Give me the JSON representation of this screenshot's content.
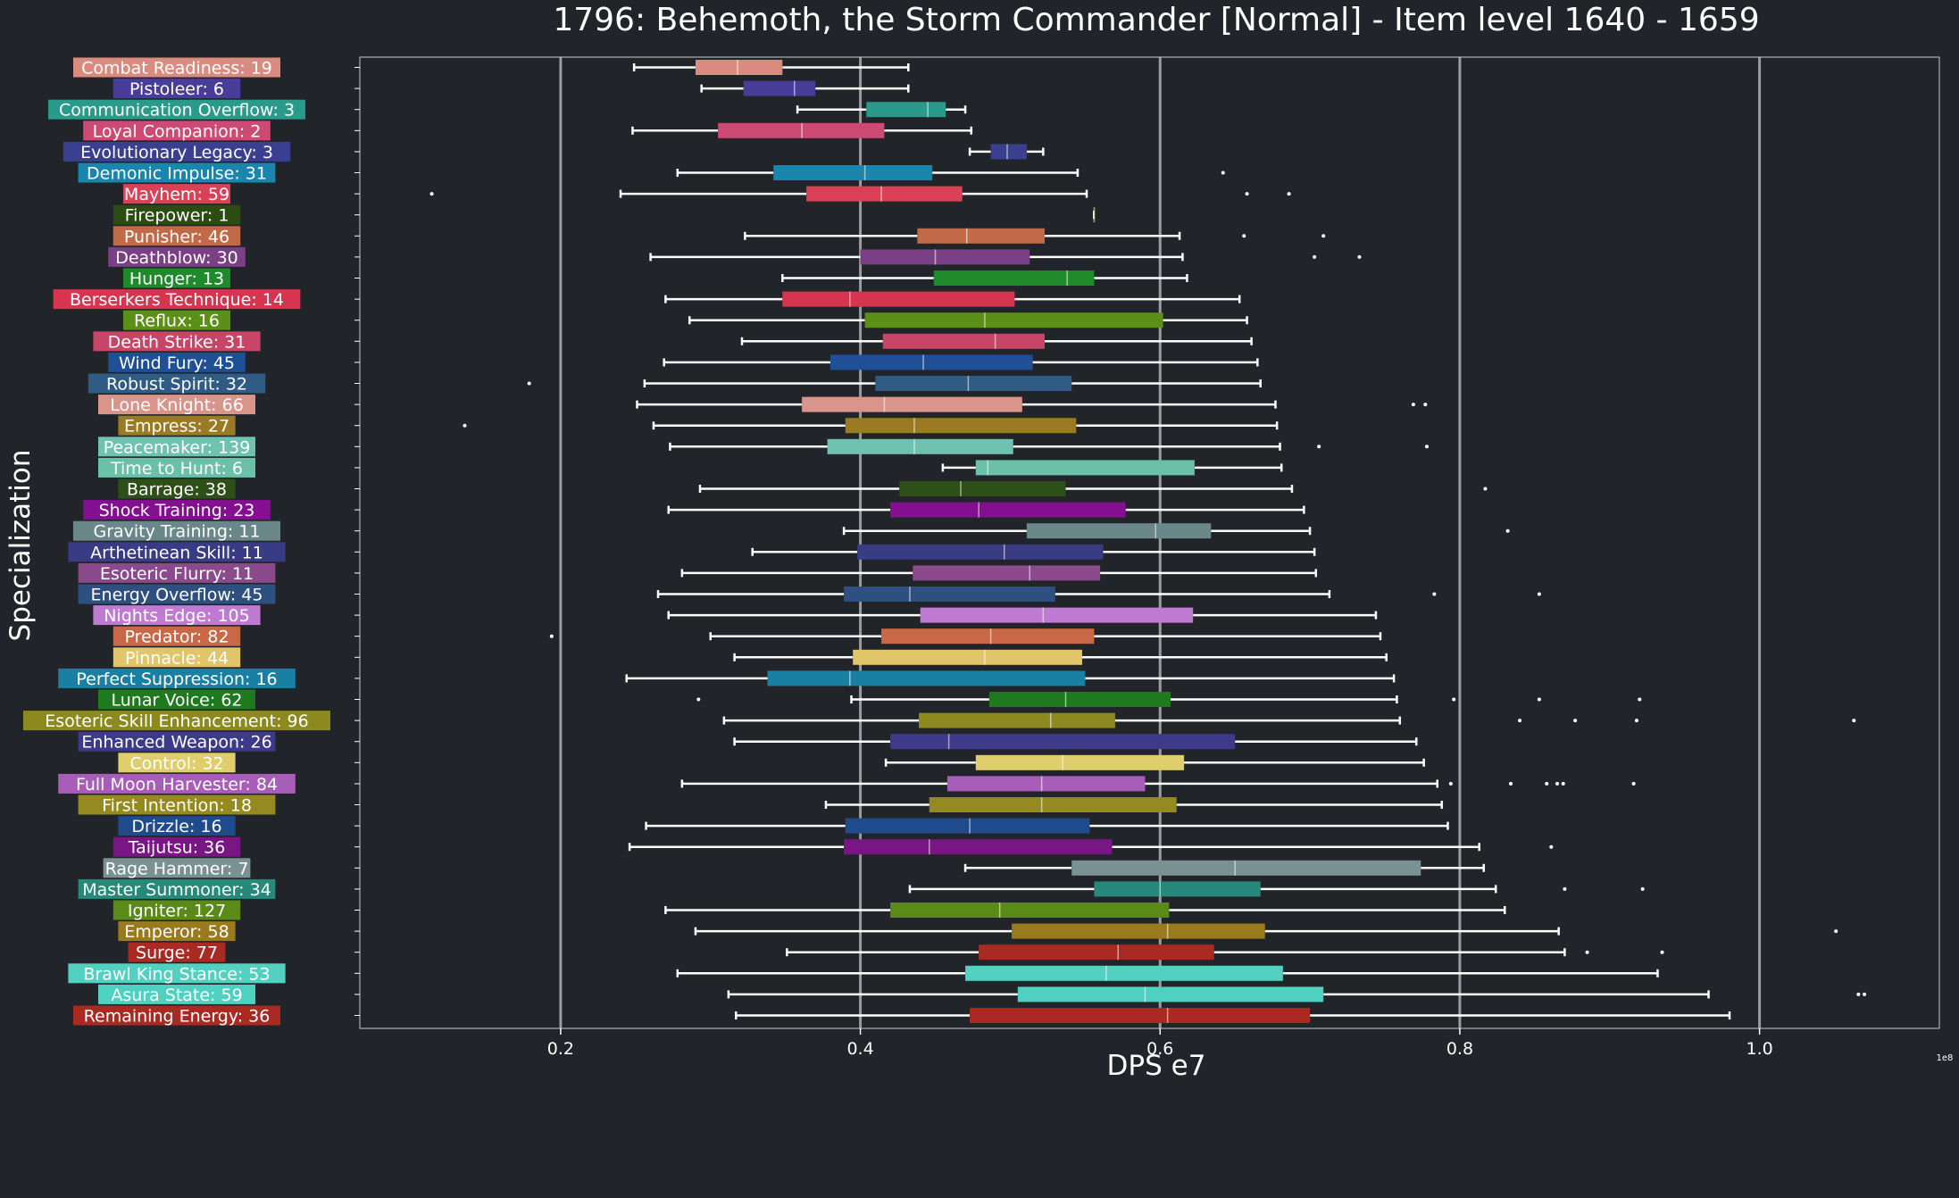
{
  "chart_data": {
    "type": "boxplot",
    "orientation": "horizontal",
    "title": "1796: Behemoth, the Storm Commander [Normal] - Item level 1640 - 1659",
    "xlabel": "DPS e7",
    "ylabel": "Specialization",
    "x_offset_text": "1e8",
    "xlim": [
      0.066,
      1.12
    ],
    "xticks": [
      0.2,
      0.4,
      0.6,
      0.8,
      1.0
    ],
    "xtick_labels": [
      "0.2",
      "0.4",
      "0.6",
      "0.8",
      "1.0"
    ],
    "vertical_gridlines_at": [
      0.2,
      0.4,
      0.6,
      0.8,
      1.0
    ],
    "background_color": "#212428",
    "gridline_color": "#9a9ca0",
    "whisker_color": "#ffffff",
    "series": [
      {
        "label": "Combat Readiness: 19",
        "color": "#d98b80",
        "whislo": 0.249,
        "q1": 0.29,
        "median": 0.318,
        "q3": 0.348,
        "whishi": 0.432,
        "fliers": []
      },
      {
        "label": "Pistoleer: 6",
        "color": "#4a3d9a",
        "whislo": 0.294,
        "q1": 0.322,
        "median": 0.356,
        "q3": 0.37,
        "whishi": 0.432,
        "fliers": []
      },
      {
        "label": "Communication Overflow: 3",
        "color": "#2a9a8a",
        "whislo": 0.358,
        "q1": 0.404,
        "median": 0.445,
        "q3": 0.457,
        "whishi": 0.47,
        "fliers": []
      },
      {
        "label": "Loyal Companion: 2",
        "color": "#cc4a73",
        "whislo": 0.248,
        "q1": 0.305,
        "median": 0.361,
        "q3": 0.416,
        "whishi": 0.474,
        "fliers": []
      },
      {
        "label": "Evolutionary Legacy: 3",
        "color": "#3a3f8f",
        "whislo": 0.473,
        "q1": 0.487,
        "median": 0.498,
        "q3": 0.511,
        "whishi": 0.522,
        "fliers": []
      },
      {
        "label": "Demonic Impulse: 31",
        "color": "#1a85ad",
        "whislo": 0.278,
        "q1": 0.342,
        "median": 0.403,
        "q3": 0.448,
        "whishi": 0.545,
        "fliers": [
          0.642
        ]
      },
      {
        "label": "Mayhem: 59",
        "color": "#d94256",
        "whislo": 0.24,
        "q1": 0.364,
        "median": 0.414,
        "q3": 0.468,
        "whishi": 0.551,
        "fliers": [
          0.114,
          0.658,
          0.686
        ]
      },
      {
        "label": "Firepower: 1",
        "color": "#2b4d14",
        "whislo": 0.556,
        "q1": 0.556,
        "median": 0.556,
        "q3": 0.556,
        "whishi": 0.556,
        "fliers": []
      },
      {
        "label": "Punisher: 46",
        "color": "#c26a47",
        "whislo": 0.323,
        "q1": 0.438,
        "median": 0.471,
        "q3": 0.523,
        "whishi": 0.613,
        "fliers": [
          0.656,
          0.709
        ]
      },
      {
        "label": "Deathblow: 30",
        "color": "#7a3f85",
        "whislo": 0.26,
        "q1": 0.4,
        "median": 0.45,
        "q3": 0.513,
        "whishi": 0.615,
        "fliers": [
          0.703,
          0.733
        ]
      },
      {
        "label": "Hunger: 13",
        "color": "#1f8a2a",
        "whislo": 0.348,
        "q1": 0.449,
        "median": 0.538,
        "q3": 0.556,
        "whishi": 0.618,
        "fliers": []
      },
      {
        "label": "Berserkers Technique: 14",
        "color": "#d6344f",
        "whislo": 0.27,
        "q1": 0.348,
        "median": 0.393,
        "q3": 0.503,
        "whishi": 0.653,
        "fliers": []
      },
      {
        "label": "Reflux: 16",
        "color": "#5b8f16",
        "whislo": 0.286,
        "q1": 0.403,
        "median": 0.483,
        "q3": 0.602,
        "whishi": 0.658,
        "fliers": []
      },
      {
        "label": "Death Strike: 31",
        "color": "#c74566",
        "whislo": 0.321,
        "q1": 0.415,
        "median": 0.49,
        "q3": 0.523,
        "whishi": 0.661,
        "fliers": []
      },
      {
        "label": "Wind Fury: 45",
        "color": "#1f4f96",
        "whislo": 0.269,
        "q1": 0.38,
        "median": 0.442,
        "q3": 0.515,
        "whishi": 0.665,
        "fliers": []
      },
      {
        "label": "Robust Spirit: 32",
        "color": "#2f5b85",
        "whislo": 0.256,
        "q1": 0.41,
        "median": 0.472,
        "q3": 0.541,
        "whishi": 0.667,
        "fliers": [
          0.179
        ]
      },
      {
        "label": "Lone Knight: 66",
        "color": "#d9958a",
        "whislo": 0.251,
        "q1": 0.361,
        "median": 0.416,
        "q3": 0.508,
        "whishi": 0.677,
        "fliers": [
          0.769,
          0.777
        ]
      },
      {
        "label": "Empress: 27",
        "color": "#9a7a22",
        "whislo": 0.262,
        "q1": 0.39,
        "median": 0.436,
        "q3": 0.544,
        "whishi": 0.678,
        "fliers": [
          0.136
        ]
      },
      {
        "label": "Peacemaker: 139",
        "color": "#6fc2b0",
        "whislo": 0.273,
        "q1": 0.378,
        "median": 0.436,
        "q3": 0.502,
        "whishi": 0.68,
        "fliers": [
          0.706,
          0.778
        ]
      },
      {
        "label": "Time to Hunt: 6",
        "color": "#6bc0a8",
        "whislo": 0.455,
        "q1": 0.477,
        "median": 0.485,
        "q3": 0.623,
        "whishi": 0.681,
        "fliers": []
      },
      {
        "label": "Barrage: 38",
        "color": "#2e4f17",
        "whislo": 0.293,
        "q1": 0.426,
        "median": 0.467,
        "q3": 0.537,
        "whishi": 0.688,
        "fliers": [
          0.817
        ]
      },
      {
        "label": "Shock Training: 23",
        "color": "#850f91",
        "whislo": 0.272,
        "q1": 0.42,
        "median": 0.479,
        "q3": 0.577,
        "whishi": 0.696,
        "fliers": []
      },
      {
        "label": "Gravity Training: 11",
        "color": "#6a878a",
        "whislo": 0.389,
        "q1": 0.511,
        "median": 0.597,
        "q3": 0.634,
        "whishi": 0.7,
        "fliers": [
          0.832
        ]
      },
      {
        "label": "Arthetinean Skill: 11",
        "color": "#393b85",
        "whislo": 0.328,
        "q1": 0.398,
        "median": 0.496,
        "q3": 0.562,
        "whishi": 0.703,
        "fliers": []
      },
      {
        "label": "Esoteric Flurry: 11",
        "color": "#8a4a8c",
        "whislo": 0.281,
        "q1": 0.435,
        "median": 0.513,
        "q3": 0.56,
        "whishi": 0.704,
        "fliers": []
      },
      {
        "label": "Energy Overflow: 45",
        "color": "#2e5080",
        "whislo": 0.265,
        "q1": 0.389,
        "median": 0.433,
        "q3": 0.53,
        "whishi": 0.713,
        "fliers": [
          0.783,
          0.853
        ]
      },
      {
        "label": "Nights Edge: 105",
        "color": "#bf7ad1",
        "whislo": 0.272,
        "q1": 0.44,
        "median": 0.522,
        "q3": 0.622,
        "whishi": 0.744,
        "fliers": []
      },
      {
        "label": "Predator: 82",
        "color": "#c96847",
        "whislo": 0.3,
        "q1": 0.414,
        "median": 0.487,
        "q3": 0.556,
        "whishi": 0.747,
        "fliers": [
          0.194
        ]
      },
      {
        "label": "Pinnacle: 44",
        "color": "#e0c56b",
        "whislo": 0.316,
        "q1": 0.395,
        "median": 0.483,
        "q3": 0.548,
        "whishi": 0.751,
        "fliers": []
      },
      {
        "label": "Perfect Suppression: 16",
        "color": "#1a80a3",
        "whislo": 0.244,
        "q1": 0.338,
        "median": 0.393,
        "q3": 0.55,
        "whishi": 0.756,
        "fliers": []
      },
      {
        "label": "Lunar Voice: 62",
        "color": "#1f7a1f",
        "whislo": 0.394,
        "q1": 0.486,
        "median": 0.537,
        "q3": 0.607,
        "whishi": 0.758,
        "fliers": [
          0.292,
          0.796,
          0.853,
          0.92
        ]
      },
      {
        "label": "Esoteric Skill Enhancement: 96",
        "color": "#8c8a1f",
        "whislo": 0.309,
        "q1": 0.439,
        "median": 0.527,
        "q3": 0.57,
        "whishi": 0.76,
        "fliers": [
          0.84,
          0.877,
          0.918,
          1.063
        ]
      },
      {
        "label": "Enhanced Weapon: 26",
        "color": "#3d3a8a",
        "whislo": 0.316,
        "q1": 0.42,
        "median": 0.459,
        "q3": 0.65,
        "whishi": 0.771,
        "fliers": []
      },
      {
        "label": "Control: 32",
        "color": "#e0cd6b",
        "whislo": 0.417,
        "q1": 0.477,
        "median": 0.535,
        "q3": 0.616,
        "whishi": 0.776,
        "fliers": []
      },
      {
        "label": "Full Moon Harvester: 84",
        "color": "#a85eb8",
        "whislo": 0.281,
        "q1": 0.458,
        "median": 0.521,
        "q3": 0.59,
        "whishi": 0.785,
        "fliers": [
          0.794,
          0.834,
          0.858,
          0.865,
          0.869,
          0.916
        ]
      },
      {
        "label": "First Intention: 18",
        "color": "#948a1f",
        "whislo": 0.377,
        "q1": 0.446,
        "median": 0.521,
        "q3": 0.611,
        "whishi": 0.788,
        "fliers": []
      },
      {
        "label": "Drizzle: 16",
        "color": "#1f4a8c",
        "whislo": 0.257,
        "q1": 0.39,
        "median": 0.473,
        "q3": 0.553,
        "whishi": 0.792,
        "fliers": []
      },
      {
        "label": "Taijutsu: 36",
        "color": "#7a1585",
        "whislo": 0.246,
        "q1": 0.389,
        "median": 0.446,
        "q3": 0.568,
        "whishi": 0.813,
        "fliers": [
          0.861
        ]
      },
      {
        "label": "Rage Hammer: 7",
        "color": "#7a9194",
        "whislo": 0.47,
        "q1": 0.541,
        "median": 0.65,
        "q3": 0.774,
        "whishi": 0.816,
        "fliers": []
      },
      {
        "label": "Master Summoner: 34",
        "color": "#27897a",
        "whislo": 0.433,
        "q1": 0.556,
        "median": 0.6,
        "q3": 0.667,
        "whishi": 0.824,
        "fliers": [
          0.87,
          0.922
        ]
      },
      {
        "label": "Igniter: 127",
        "color": "#5a8a17",
        "whislo": 0.27,
        "q1": 0.42,
        "median": 0.493,
        "q3": 0.606,
        "whishi": 0.83,
        "fliers": []
      },
      {
        "label": "Emperor: 58",
        "color": "#9a7a1f",
        "whislo": 0.29,
        "q1": 0.501,
        "median": 0.605,
        "q3": 0.67,
        "whishi": 0.866,
        "fliers": [
          1.051
        ]
      },
      {
        "label": "Surge: 77",
        "color": "#a82a22",
        "whislo": 0.351,
        "q1": 0.479,
        "median": 0.572,
        "q3": 0.636,
        "whishi": 0.87,
        "fliers": [
          0.885,
          0.935
        ]
      },
      {
        "label": "Brawl King Stance: 53",
        "color": "#52d1c0",
        "whislo": 0.278,
        "q1": 0.47,
        "median": 0.564,
        "q3": 0.682,
        "whishi": 0.932,
        "fliers": []
      },
      {
        "label": "Asura State: 59",
        "color": "#4ed1c0",
        "whislo": 0.312,
        "q1": 0.505,
        "median": 0.59,
        "q3": 0.709,
        "whishi": 0.966,
        "fliers": [
          1.066,
          1.07
        ]
      },
      {
        "label": "Remaining Energy: 36",
        "color": "#a82a22",
        "whislo": 0.317,
        "q1": 0.473,
        "median": 0.605,
        "q3": 0.7,
        "whishi": 0.98,
        "fliers": []
      }
    ]
  }
}
